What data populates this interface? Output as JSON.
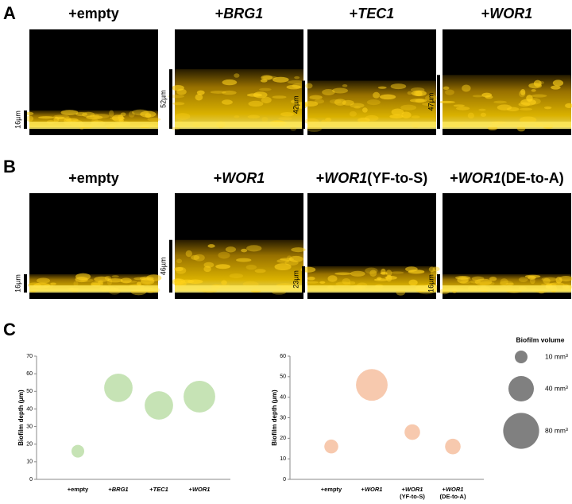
{
  "panels": [
    {
      "label": "A",
      "images": [
        {
          "title": "+empty",
          "scale": "16µm"
        },
        {
          "title": "+BRG1",
          "scale": "52µm"
        },
        {
          "title": "+TEC1",
          "scale": "42µm"
        },
        {
          "title": "+WOR1",
          "scale": "47µm"
        }
      ]
    },
    {
      "label": "B",
      "images": [
        {
          "title": "+empty",
          "scale": "16µm"
        },
        {
          "title": "+WOR1",
          "scale": "46µm"
        },
        {
          "title": "+WOR1(YF-to-S)",
          "scale": "23µm"
        },
        {
          "title": "+WOR1(DE-to-A)",
          "scale": "16µm"
        }
      ]
    },
    {
      "label": "C"
    }
  ],
  "chart_data": [
    {
      "type": "bubble",
      "y_label": "Biofilm depth (µm)",
      "categories": [
        "+empty",
        "+BRG1",
        "+TEC1",
        "+WOR1"
      ],
      "values": [
        16,
        52,
        42,
        47
      ],
      "sizes": [
        10,
        50,
        50,
        62
      ],
      "color": "#c6e3b5",
      "ylim": [
        0,
        70
      ],
      "yticks": [
        0,
        10,
        20,
        30,
        40,
        50,
        60,
        70
      ]
    },
    {
      "type": "bubble",
      "y_label": "Biofilm depth (µm)",
      "categories": [
        "+empty",
        "+WOR1",
        "+WOR1\n(YF-to-S)",
        "+WOR1\n(DE-to-A)"
      ],
      "values": [
        16,
        46,
        23,
        16
      ],
      "sizes": [
        12,
        62,
        15,
        15
      ],
      "color": "#f7c9ae",
      "ylim": [
        0,
        60
      ],
      "yticks": [
        0,
        10,
        20,
        30,
        40,
        50,
        60
      ]
    }
  ],
  "size_legend": {
    "title": "Biofilm volume",
    "color": "#808080",
    "entries": [
      {
        "value": 10,
        "label": "10 mm³"
      },
      {
        "value": 40,
        "label": "40 mm³"
      },
      {
        "value": 80,
        "label": "80 mm³"
      }
    ]
  }
}
